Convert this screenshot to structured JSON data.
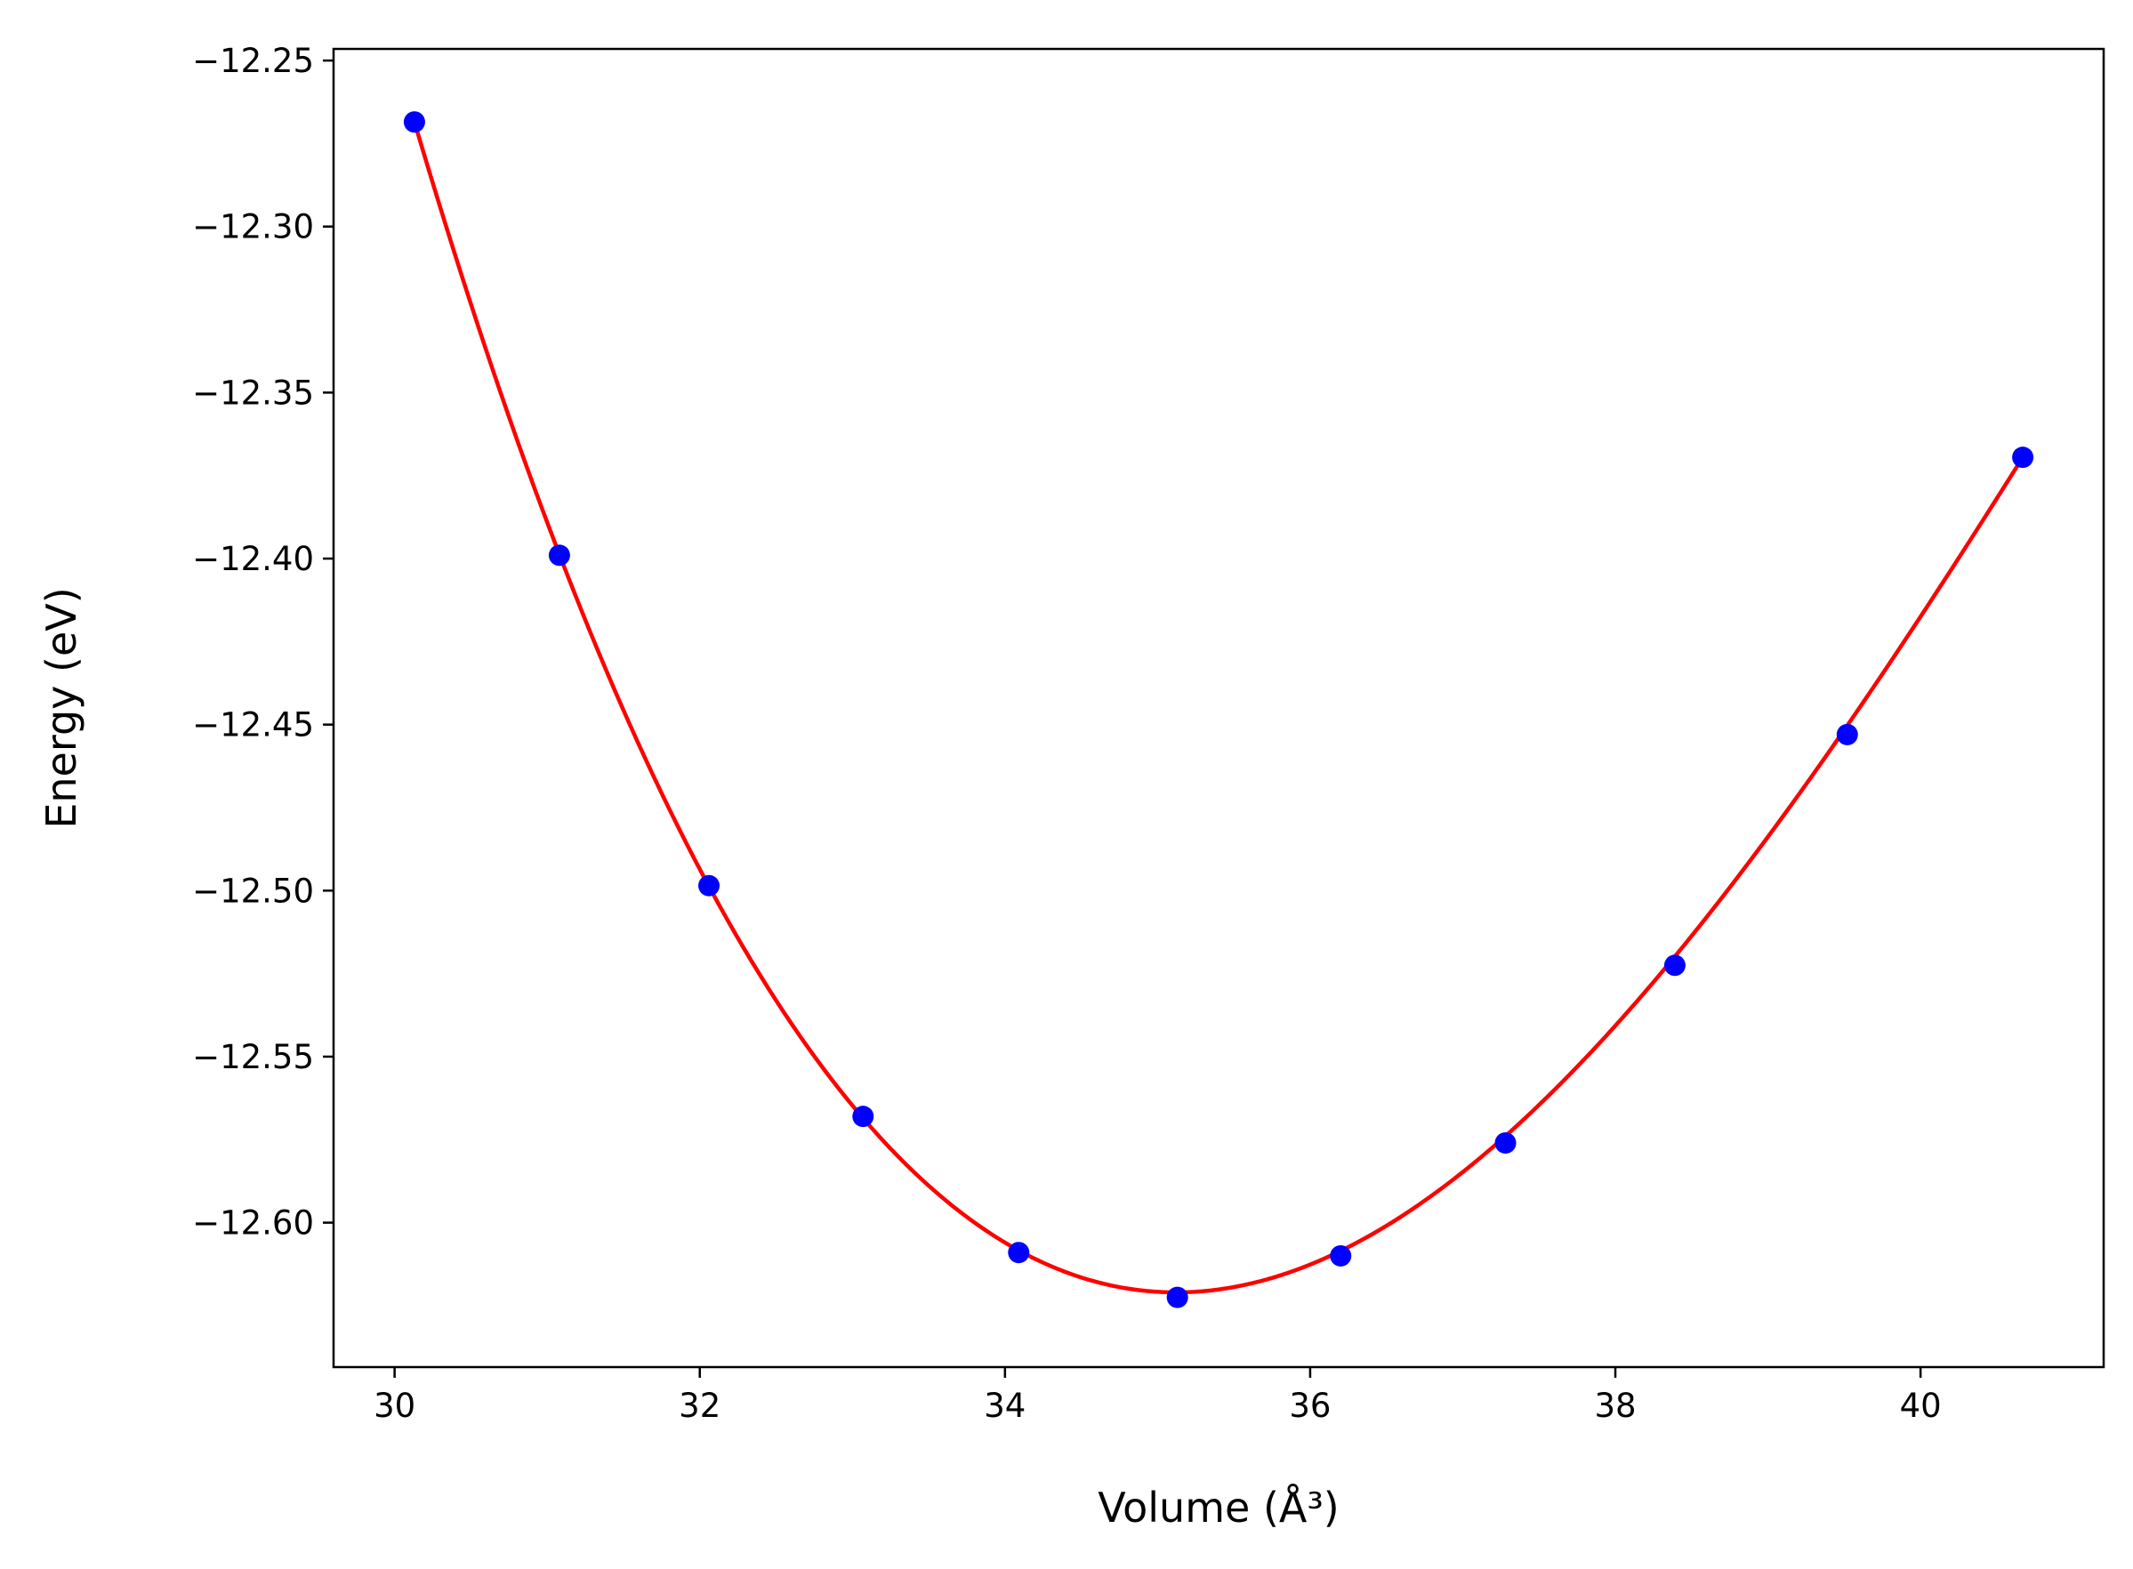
{
  "chart_data": {
    "type": "scatter",
    "xlabel": "Volume (Å³)",
    "ylabel": "Energy (eV)",
    "xlim": [
      29.6,
      41.2
    ],
    "ylim": [
      -12.6435,
      -12.2465
    ],
    "xticks": [
      30,
      32,
      34,
      36,
      38,
      40
    ],
    "xtick_labels": [
      "30",
      "32",
      "34",
      "36",
      "38",
      "40"
    ],
    "yticks": [
      -12.25,
      -12.3,
      -12.35,
      -12.4,
      -12.45,
      -12.5,
      -12.55,
      -12.6
    ],
    "ytick_labels": [
      "−12.25",
      "−12.30",
      "−12.35",
      "−12.40",
      "−12.45",
      "−12.50",
      "−12.55",
      "−12.60"
    ],
    "grid": false,
    "points": {
      "x": [
        30.13,
        31.08,
        32.06,
        33.07,
        34.09,
        35.13,
        36.2,
        37.28,
        38.39,
        39.52,
        40.67
      ],
      "y": [
        -12.2685,
        -12.399,
        -12.4985,
        -12.568,
        -12.609,
        -12.6225,
        -12.61,
        -12.576,
        -12.5225,
        -12.453,
        -12.3695
      ]
    },
    "fit_curve": {
      "x_range": [
        30.13,
        40.67
      ],
      "vertex_x": 35.12,
      "vertex_y": -12.621,
      "type": "cubic"
    },
    "colors": {
      "points": "#0000ff",
      "fit": "#ff0000",
      "axes": "#000000"
    }
  }
}
